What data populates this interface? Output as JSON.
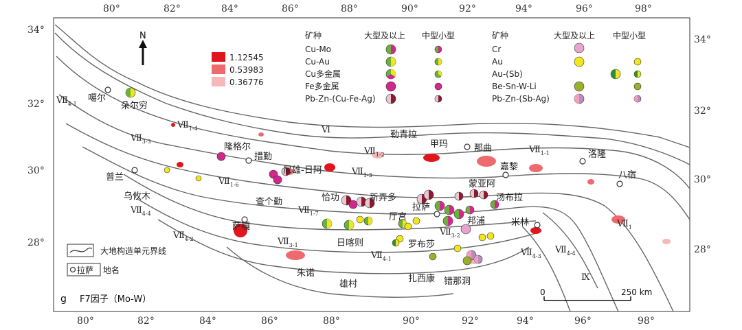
{
  "axes": {
    "top_lon": [
      "80°",
      "82°",
      "84°",
      "86°",
      "88°",
      "90°",
      "92°",
      "94°",
      "96°",
      "98°"
    ],
    "bottom_lon": [
      "80°",
      "82°",
      "84°",
      "86°",
      "88°",
      "90°",
      "92°",
      "94°",
      "96°",
      "98°"
    ],
    "left_lat": [
      "34°",
      "32°",
      "30°",
      "28°"
    ],
    "right_lat": [
      "34°",
      "32°",
      "30°",
      "28°"
    ]
  },
  "north_label": "N",
  "factor_legend": {
    "values": [
      "1.12545",
      "0.53983",
      "0.36776"
    ],
    "colors": [
      "#e0151e",
      "#ef6a6d",
      "#f5b9ba"
    ]
  },
  "mineral_legend": {
    "header_mineral": "矿种",
    "header_large": "大型及以上",
    "header_medium": "中型小型",
    "left": [
      "Cu-Mo",
      "Cu-Au",
      "Cu多金属",
      "Fe多金属",
      "Pb-Zn-(Cu-Fe-Ag)"
    ],
    "right": [
      "Cr",
      "Au",
      "Au-(Sb)",
      "Be-Sn-W-Li",
      "Pb-Zn-(Sb-Ag)"
    ]
  },
  "tectonic_units": {
    "VII_1_1_a": {
      "main": "Ⅶ",
      "sub": "4-1"
    },
    "VII_1_4": {
      "main": "Ⅶ",
      "sub": "1-4"
    },
    "VII_3_3": {
      "main": "Ⅶ",
      "sub": "3-3"
    },
    "VI": {
      "main": "Ⅵ",
      "sub": ""
    },
    "VII_1_2": {
      "main": "Ⅶ",
      "sub": "1-2"
    },
    "VII_1_1_b": {
      "main": "Ⅶ",
      "sub": "1-1"
    },
    "VII_1_6": {
      "main": "Ⅶ",
      "sub": "1-6"
    },
    "VII_1_3": {
      "main": "Ⅶ",
      "sub": "1-3"
    },
    "VII_1_7": {
      "main": "Ⅶ",
      "sub": "1-7"
    },
    "VII_4_4_a": {
      "main": "Ⅶ",
      "sub": "4-4"
    },
    "VII_4_2": {
      "main": "Ⅶ",
      "sub": "4-2"
    },
    "VII_3_1": {
      "main": "Ⅶ",
      "sub": "3-1"
    },
    "VII_3_2": {
      "main": "Ⅶ",
      "sub": "3-2"
    },
    "VII_4_1": {
      "main": "Ⅶ",
      "sub": "4-1"
    },
    "VII_4_3": {
      "main": "Ⅶ",
      "sub": "4-3"
    },
    "VII_4_4_b": {
      "main": "Ⅶ",
      "sub": "4-4"
    },
    "VII_1_x": {
      "main": "Ⅶ",
      "sub": "1"
    },
    "IX": {
      "main": "Ⅸ",
      "sub": ""
    }
  },
  "places": {
    "gaer": "噶尔",
    "duoerqiong": "朵尔穷",
    "longgeer": "隆格尔",
    "cuoqin": "措勤",
    "leqingla": "勒青拉",
    "jiama": "甲玛",
    "naqu": "那曲",
    "luolong": "洛隆",
    "jiali": "嘉黎",
    "basu": "八宿",
    "pulan": "普兰",
    "niexiong": "尼雄-日阿",
    "mengyaa": "蒙亚阿",
    "wuyoumu": "乌攸木",
    "chageqin": "查个勤",
    "qiagong": "恰功",
    "xinongduo": "新弄多",
    "tangbula": "汤布拉",
    "lasa": "拉萨",
    "tinggong": "厅宫",
    "bangpu": "邦浦",
    "milin": "米林",
    "saga": "萨嘎",
    "rikaze": "日喀则",
    "luobusha": "罗布莎",
    "zhunuo": "朱诺",
    "xiongcun": "雄村",
    "zhaxikang": "扎西康",
    "cuonadong": "错那洞"
  },
  "bottom_legend": {
    "boundary_label": "大地构造单元界线",
    "place_sample": "拉萨",
    "place_label": "地名"
  },
  "panel_label": "g",
  "factor_title": "F7因子（Mo-W）",
  "scale_bar": {
    "start": "0",
    "end": "250 km"
  },
  "colors": {
    "cu_mo_a": "#6ab23a",
    "cu_mo_b": "#d0288c",
    "cu_au_a": "#6ab23a",
    "cu_au_b": "#f1e51f",
    "cupoly_a": "#6ab23a",
    "cupoly_b": "#f1e51f",
    "cupoly_c": "#d0288c",
    "fe": "#d0288c",
    "pbzn_a": "#8a1b2e",
    "pbzn_b": "#e8c6d4",
    "cr": "#e6a4cf",
    "au": "#f1e51f",
    "ausb_a": "#2f8c3a",
    "ausb_b": "#f1e51f",
    "besn": "#9bb02a",
    "pbznsb_a": "#f19fbe",
    "pbznsb_b": "#b88cc4"
  }
}
